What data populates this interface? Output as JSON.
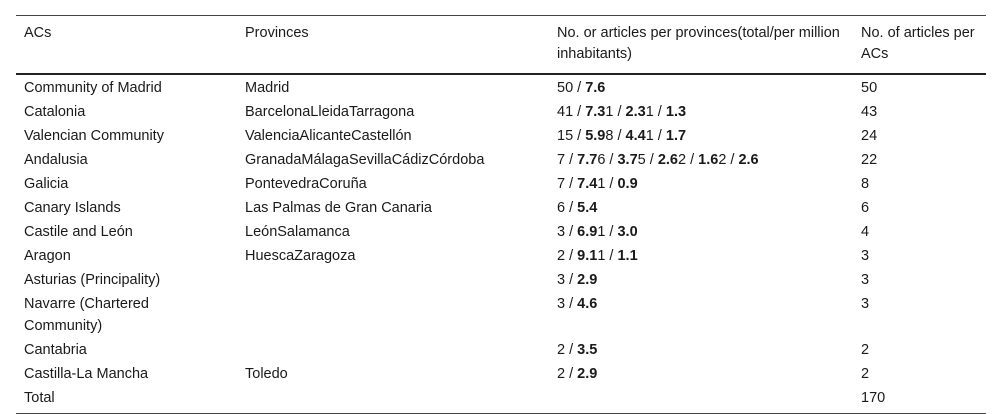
{
  "table": {
    "headers": [
      "ACs",
      "Provinces",
      "No. or articles per provinces(total/per million inhabitants)",
      "No. of articles per ACs"
    ],
    "rows": [
      {
        "ac": "Community of Madrid",
        "provinces": "Madrid",
        "articles": [
          {
            "t": "50 / "
          },
          {
            "t": "7.6",
            "b": true
          }
        ],
        "total": "50"
      },
      {
        "ac": "Catalonia",
        "provinces": "BarcelonaLleidaTarragona",
        "articles": [
          {
            "t": "41 / "
          },
          {
            "t": "7.3",
            "b": true
          },
          {
            "t": "1 / "
          },
          {
            "t": "2.3",
            "b": true
          },
          {
            "t": "1 / "
          },
          {
            "t": "1.3",
            "b": true
          }
        ],
        "total": "43"
      },
      {
        "ac": "Valencian Community",
        "provinces": "ValenciaAlicanteCastellón",
        "articles": [
          {
            "t": "15 / "
          },
          {
            "t": "5.9",
            "b": true
          },
          {
            "t": "8 / "
          },
          {
            "t": "4.4",
            "b": true
          },
          {
            "t": "1 / "
          },
          {
            "t": "1.7",
            "b": true
          }
        ],
        "total": "24"
      },
      {
        "ac": "Andalusia",
        "provinces": "GranadaMálagaSevillaCádizCórdoba",
        "articles": [
          {
            "t": "7 / "
          },
          {
            "t": "7.7",
            "b": true
          },
          {
            "t": "6 / "
          },
          {
            "t": "3.7",
            "b": true
          },
          {
            "t": "5 / "
          },
          {
            "t": "2.6",
            "b": true
          },
          {
            "t": "2 / "
          },
          {
            "t": "1.6",
            "b": true
          },
          {
            "t": "2 / "
          },
          {
            "t": "2.6",
            "b": true
          }
        ],
        "total": "22"
      },
      {
        "ac": "Galicia",
        "provinces": "PontevedraCoruña",
        "articles": [
          {
            "t": "7 / "
          },
          {
            "t": "7.4",
            "b": true
          },
          {
            "t": "1 / "
          },
          {
            "t": "0.9",
            "b": true
          }
        ],
        "total": "8"
      },
      {
        "ac": "Canary Islands",
        "provinces": "Las Palmas de Gran Canaria",
        "articles": [
          {
            "t": "6 / "
          },
          {
            "t": "5.4",
            "b": true
          }
        ],
        "total": "6"
      },
      {
        "ac": "Castile and León",
        "provinces": "LeónSalamanca",
        "articles": [
          {
            "t": "3 / "
          },
          {
            "t": "6.9",
            "b": true
          },
          {
            "t": "1 / "
          },
          {
            "t": "3.0",
            "b": true
          }
        ],
        "total": "4"
      },
      {
        "ac": "Aragon",
        "provinces": "HuescaZaragoza",
        "articles": [
          {
            "t": "2 / "
          },
          {
            "t": "9.1",
            "b": true
          },
          {
            "t": "1 / "
          },
          {
            "t": "1.1",
            "b": true
          }
        ],
        "total": "3"
      },
      {
        "ac": "Asturias (Principality)",
        "provinces": "",
        "articles": [
          {
            "t": "3 / "
          },
          {
            "t": "2.9",
            "b": true
          }
        ],
        "total": "3"
      },
      {
        "ac": "Navarre (Chartered Community)",
        "provinces": "",
        "articles": [
          {
            "t": "3 / "
          },
          {
            "t": "4.6",
            "b": true
          }
        ],
        "total": "3"
      },
      {
        "ac": "Cantabria",
        "provinces": "",
        "articles": [
          {
            "t": "2 / "
          },
          {
            "t": "3.5",
            "b": true
          }
        ],
        "total": "2"
      },
      {
        "ac": "Castilla-La Mancha",
        "provinces": "Toledo",
        "articles": [
          {
            "t": "2 / "
          },
          {
            "t": "2.9",
            "b": true
          }
        ],
        "total": "2"
      },
      {
        "ac": "Total",
        "provinces": "",
        "articles": [],
        "total": "170"
      }
    ]
  }
}
